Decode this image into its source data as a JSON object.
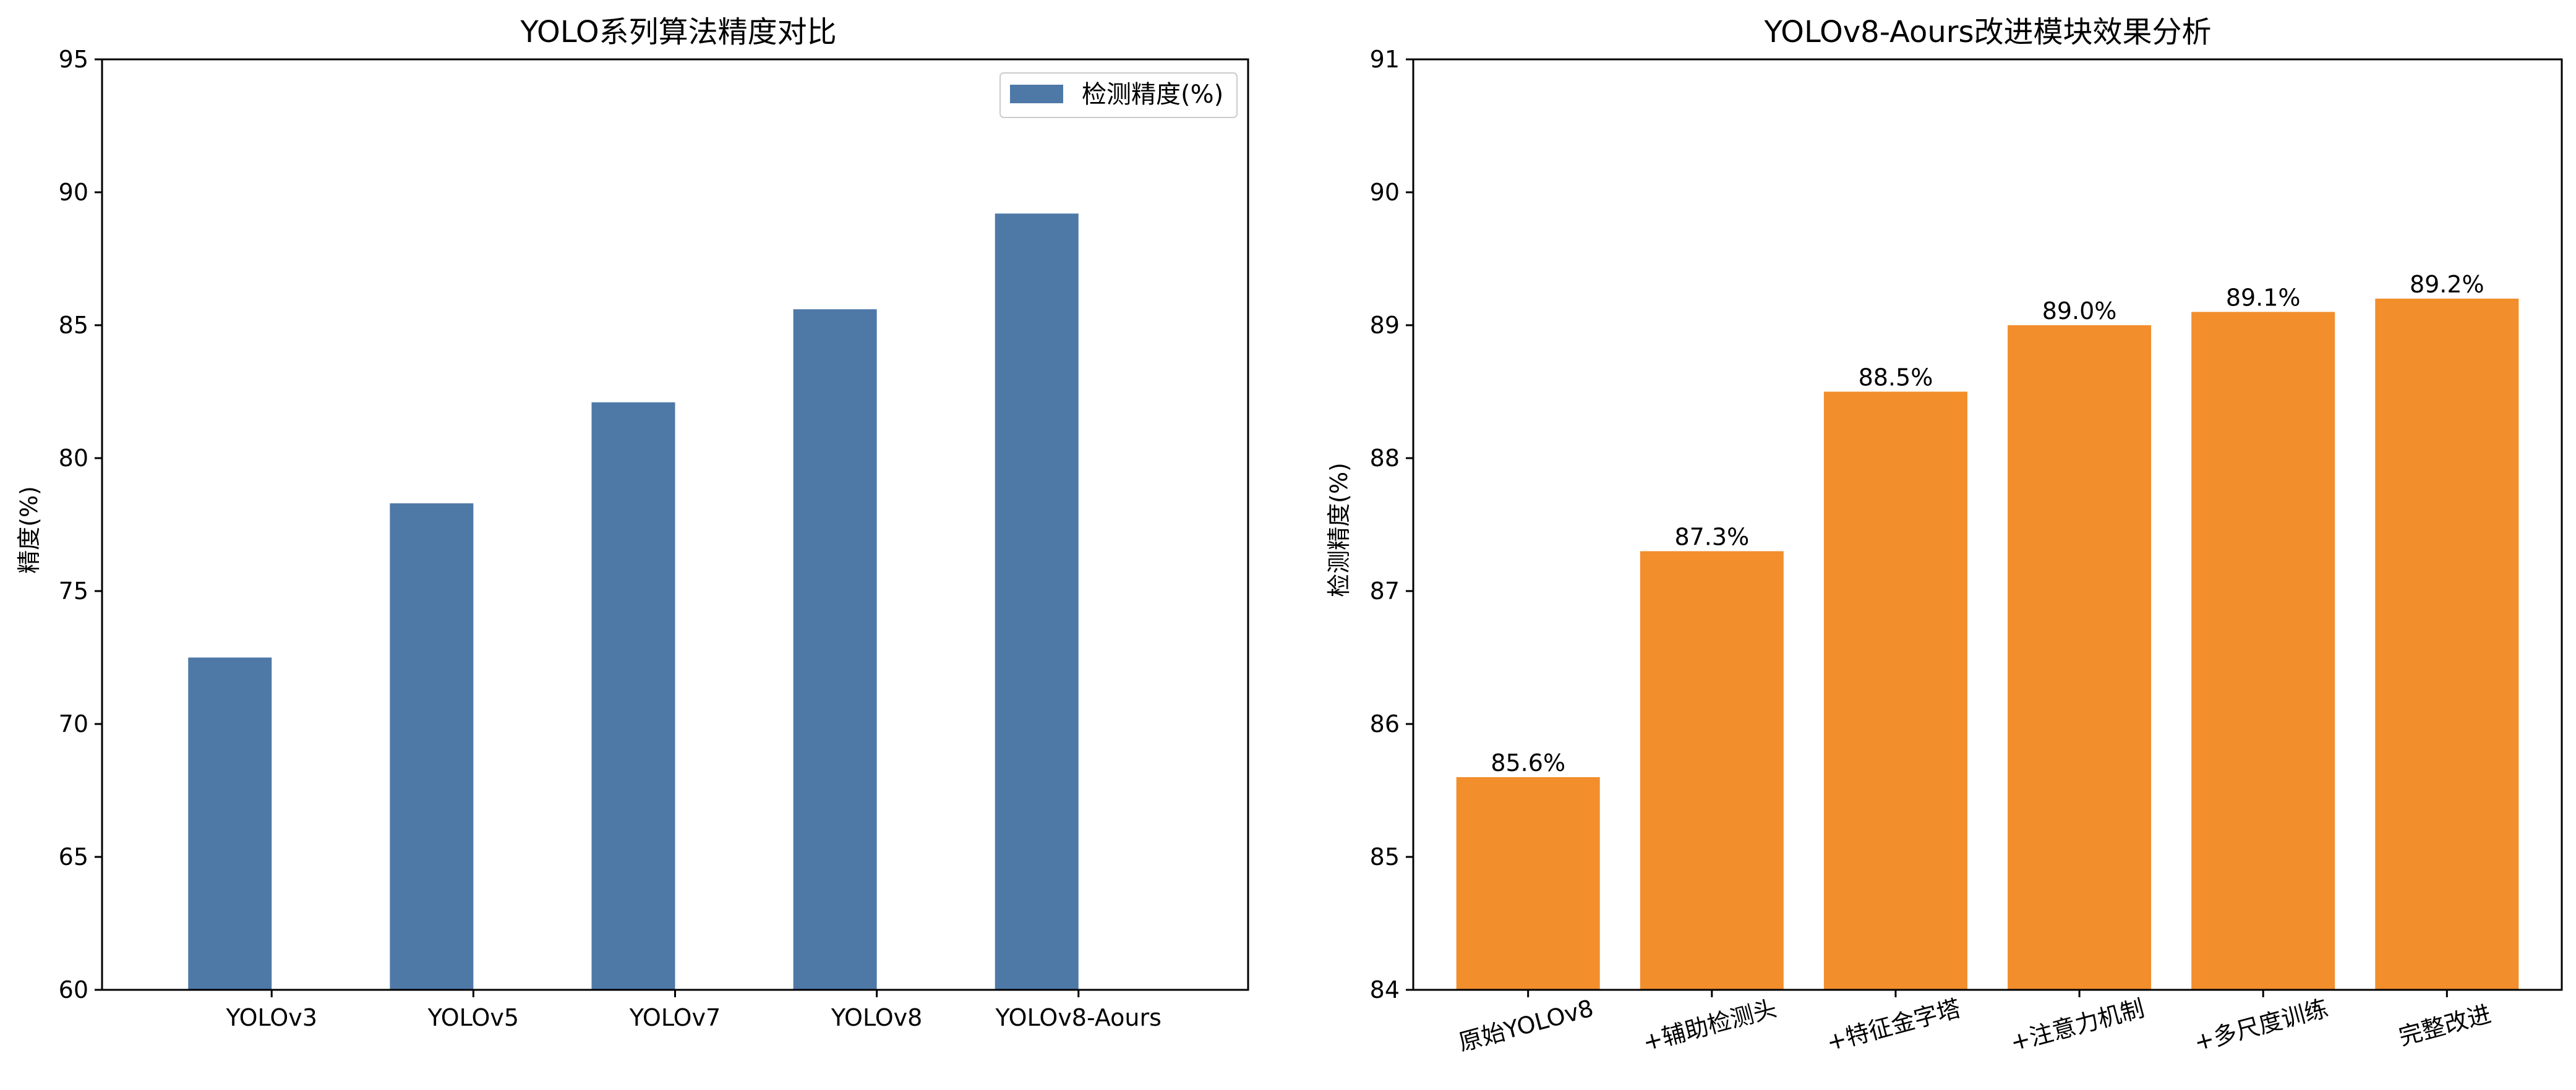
{
  "chart_data": [
    {
      "type": "bar",
      "title": "YOLO系列算法精度对比",
      "xlabel": "",
      "ylabel": "精度(%)",
      "ylim": [
        60,
        95
      ],
      "yticks": [
        60,
        65,
        70,
        75,
        80,
        85,
        90,
        95
      ],
      "categories": [
        "YOLOv3",
        "YOLOv5",
        "YOLOv7",
        "YOLOv8",
        "YOLOv8-Aours"
      ],
      "series": [
        {
          "name": "检测精度(%)",
          "values": [
            72.5,
            78.3,
            82.1,
            85.6,
            89.2
          ],
          "color": "#4e79a7"
        }
      ],
      "legend": {
        "label": "检测精度(%)",
        "position": "top-right"
      },
      "grid": false
    },
    {
      "type": "bar",
      "title": "YOLOv8-Aours改进模块效果分析",
      "xlabel": "",
      "ylabel": "检测精度(%)",
      "ylim": [
        84,
        91
      ],
      "yticks": [
        84,
        85,
        86,
        87,
        88,
        89,
        90,
        91
      ],
      "categories": [
        "原始YOLOv8",
        "+辅助检测头",
        "+特征金字塔",
        "+注意力机制",
        "+多尺度训练",
        "完整改进"
      ],
      "series": [
        {
          "name": "检测精度(%)",
          "values": [
            85.6,
            87.3,
            88.5,
            89.0,
            89.1,
            89.2
          ],
          "color": "#f28e2b"
        }
      ],
      "data_labels": [
        "85.6%",
        "87.3%",
        "88.5%",
        "89.0%",
        "89.1%",
        "89.2%"
      ],
      "grid": false
    }
  ]
}
